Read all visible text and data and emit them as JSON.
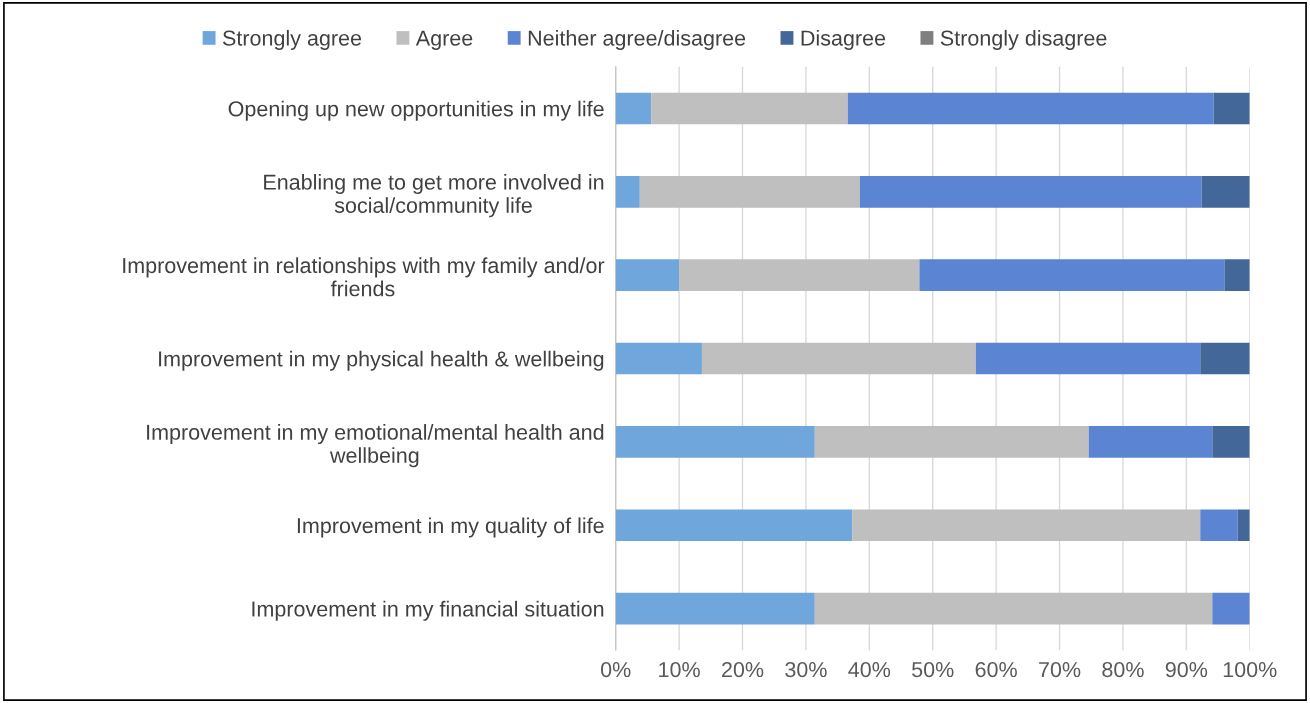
{
  "chart_data": {
    "type": "bar",
    "orientation": "horizontal",
    "stacked": true,
    "categories": [
      "Opening up new opportunities in my life",
      "Enabling me to get more involved in social/community life",
      "Improvement in relationships with my family and/or friends",
      "Improvement in my physical health & wellbeing",
      "Improvement in my emotional/mental health and wellbeing",
      "Improvement in my quality of life",
      "Improvement in my financial situation"
    ],
    "series": [
      {
        "name": "Strongly agree",
        "color": "#6fa6dc",
        "values": [
          5.6,
          3.8,
          10.0,
          13.6,
          31.4,
          37.3,
          31.4
        ]
      },
      {
        "name": "Agree",
        "color": "#bfbfbf",
        "values": [
          31.0,
          34.7,
          37.9,
          43.2,
          43.2,
          54.9,
          62.7
        ]
      },
      {
        "name": "Neither agree/disagree",
        "color": "#5b84d3",
        "values": [
          57.7,
          53.9,
          48.1,
          35.4,
          19.5,
          5.9,
          5.9
        ]
      },
      {
        "name": "Disagree",
        "color": "#44679a",
        "values": [
          5.7,
          7.6,
          4.0,
          7.8,
          5.9,
          1.9,
          0
        ]
      },
      {
        "name": "Strongly disagree",
        "color": "#7f7f7f",
        "values": [
          0,
          0,
          0,
          0,
          0,
          0,
          0
        ]
      }
    ],
    "xlim": [
      0,
      100
    ],
    "xticks": [
      {
        "value": 0,
        "label": "0%"
      },
      {
        "value": 10,
        "label": "10%"
      },
      {
        "value": 20,
        "label": "20%"
      },
      {
        "value": 30,
        "label": "30%"
      },
      {
        "value": 40,
        "label": "40%"
      },
      {
        "value": 50,
        "label": "50%"
      },
      {
        "value": 60,
        "label": "60%"
      },
      {
        "value": 70,
        "label": "70%"
      },
      {
        "value": 80,
        "label": "80%"
      },
      {
        "value": 90,
        "label": "90%"
      },
      {
        "value": 100,
        "label": "100%"
      }
    ],
    "grid": "x",
    "legend": "top"
  }
}
